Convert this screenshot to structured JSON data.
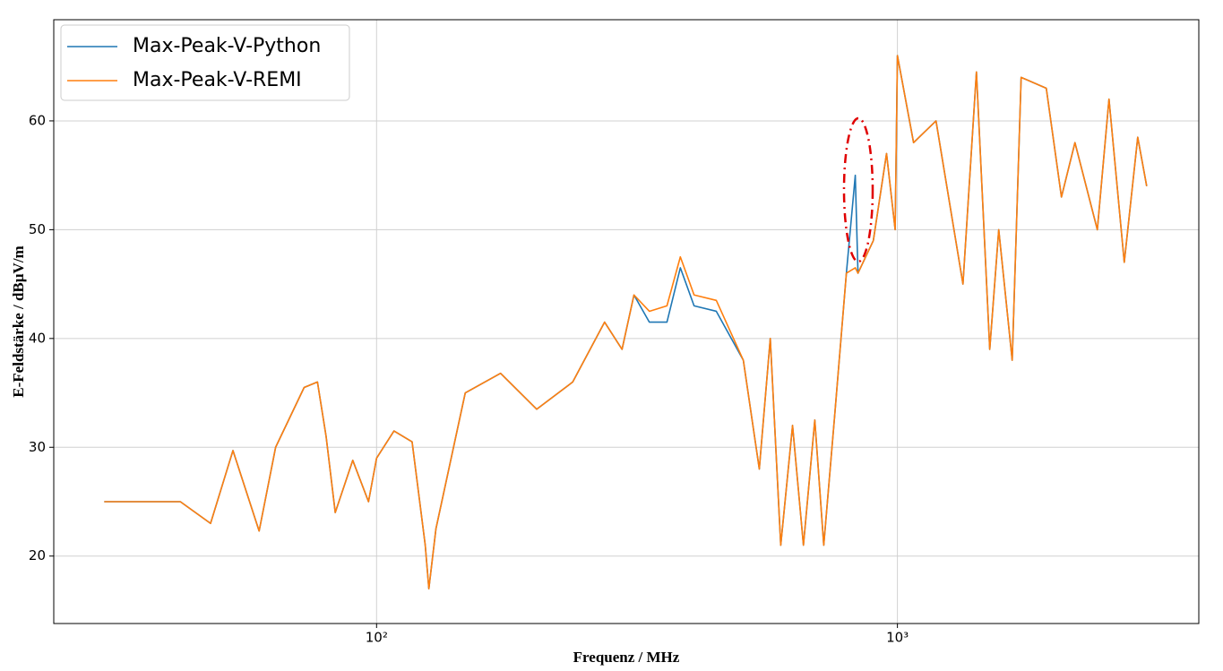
{
  "chart_data": {
    "type": "line",
    "x_label": "Frequenz / MHz",
    "y_label": "E-Feldstärke / dBµV/m",
    "xscale": "log",
    "grid": true,
    "legend": "upper left",
    "xlim": [
      24,
      3790
    ],
    "ylim": [
      13.8,
      69.3
    ],
    "xticks": [
      {
        "value": 100,
        "label": "10²"
      },
      {
        "value": 1000,
        "label": "10³"
      }
    ],
    "yticks": [
      20,
      30,
      40,
      50,
      60
    ],
    "x": [
      30,
      34,
      42,
      48,
      53,
      59.5,
      64,
      72.6,
      77,
      80,
      83.3,
      90,
      96.5,
      100,
      108,
      117,
      124,
      126,
      130,
      148,
      173,
      203,
      238,
      274,
      296,
      312,
      334,
      361,
      383,
      407,
      449,
      506,
      543,
      570,
      597,
      629,
      660,
      694,
      722,
      758,
      798,
      830,
      840,
      899,
      953,
      990,
      1000,
      1074,
      1186,
      1336,
      1418,
      1504,
      1565,
      1661,
      1728,
      1931,
      2065,
      2192,
      2420,
      2548,
      2726,
      2893,
      3010
    ],
    "series": [
      {
        "name": "Max-Peak-V-Python",
        "color": "#1f77b4",
        "values": [
          25,
          25,
          25,
          23,
          29.7,
          22.3,
          30,
          35.5,
          36,
          31,
          24,
          28.8,
          25,
          29,
          31.5,
          30.5,
          21,
          17,
          22.5,
          35,
          36.8,
          33.5,
          36,
          41.5,
          39,
          44,
          41.5,
          41.5,
          46.5,
          43,
          42.5,
          38,
          28,
          40,
          21,
          32,
          21,
          32.5,
          21,
          33,
          46,
          55,
          46,
          49,
          57,
          50,
          66,
          58,
          60,
          45,
          64.5,
          39,
          50,
          38,
          64,
          63,
          53,
          58,
          50,
          62,
          47,
          58.5,
          54
        ]
      },
      {
        "name": "Max-Peak-V-REMI",
        "color": "#ff7f0e",
        "values": [
          25,
          25,
          25,
          23,
          29.7,
          22.3,
          30,
          35.5,
          36,
          31,
          24,
          28.8,
          25,
          29,
          31.5,
          30.5,
          21,
          17,
          22.5,
          35,
          36.8,
          33.5,
          36,
          41.5,
          39,
          44,
          42.5,
          43,
          47.5,
          44,
          43.5,
          38,
          28,
          40,
          21,
          32,
          21,
          32.5,
          21,
          33,
          46,
          46.5,
          46,
          49,
          57,
          50,
          66,
          58,
          60,
          45,
          64.5,
          39,
          50,
          38,
          64,
          63,
          53,
          58,
          50,
          62,
          47,
          58.5,
          54
        ]
      }
    ]
  }
}
